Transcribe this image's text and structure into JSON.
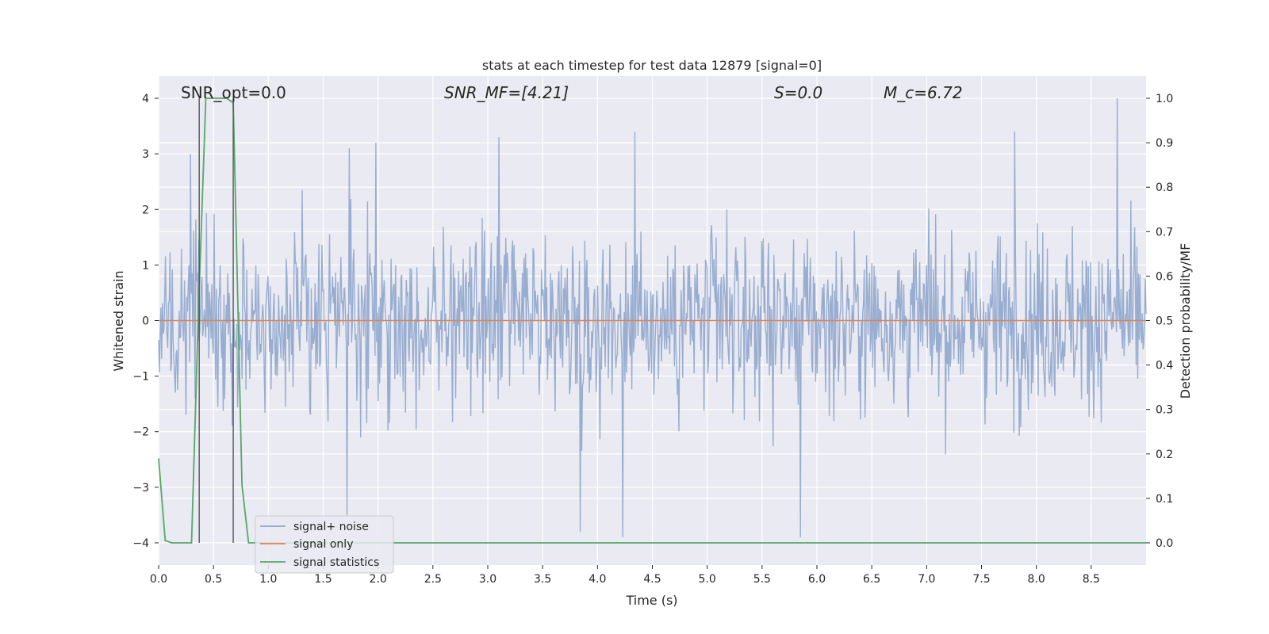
{
  "chart_data": {
    "type": "line",
    "title": "stats at each timestep for test data 12879 [signal=0]",
    "xlabel": "Time (s)",
    "ylabel": "Whitened strain",
    "y2label": "Detection probability/MF",
    "xlim": [
      0,
      9.0
    ],
    "ylim": [
      -4.4,
      4.4
    ],
    "y2lim": [
      -0.05,
      1.05
    ],
    "x_ticks": [
      "0.0",
      "0.5",
      "1.0",
      "1.5",
      "2.0",
      "2.5",
      "3.0",
      "3.5",
      "4.0",
      "4.5",
      "5.0",
      "5.5",
      "6.0",
      "6.5",
      "7.0",
      "7.5",
      "8.0",
      "8.5"
    ],
    "y_ticks": [
      "−4",
      "−3",
      "−2",
      "−1",
      "0",
      "1",
      "2",
      "3",
      "4"
    ],
    "y2_ticks": [
      "0.0",
      "0.1",
      "0.2",
      "0.3",
      "0.4",
      "0.5",
      "0.6",
      "0.7",
      "0.8",
      "0.9",
      "1.0"
    ],
    "grid": true,
    "legend_position": "lower-left",
    "annotations": {
      "snr_opt": "SNR_opt=0.0",
      "snr_mf": "SNR_MF=[4.21]",
      "s": "S=0.0",
      "mc": "M_c=6.72"
    },
    "series": [
      {
        "name": "signal+ noise",
        "color": "#8fa6cc",
        "axis": "left",
        "description": "dense whitened noise trace, roughly within ±2.5 with peaks to ±4",
        "peaks": [
          {
            "x": 0.29,
            "y": 3.0
          },
          {
            "x": 1.74,
            "y": 3.1
          },
          {
            "x": 1.98,
            "y": 3.2
          },
          {
            "x": 3.1,
            "y": 3.3
          },
          {
            "x": 4.34,
            "y": 3.4
          },
          {
            "x": 7.8,
            "y": 3.4
          },
          {
            "x": 8.74,
            "y": 4.0
          },
          {
            "x": 1.72,
            "y": -3.5
          },
          {
            "x": 4.23,
            "y": -3.9
          },
          {
            "x": 5.85,
            "y": -3.9
          },
          {
            "x": 3.84,
            "y": -3.8
          }
        ]
      },
      {
        "name": "signal only",
        "color": "#dd8452",
        "axis": "left",
        "x": [
          0,
          9.0
        ],
        "y": [
          0,
          0
        ]
      },
      {
        "name": "signal statistics",
        "color": "#55a868",
        "axis": "right",
        "x": [
          0.0,
          0.06,
          0.12,
          0.3,
          0.36,
          0.43,
          0.62,
          0.68,
          0.76,
          0.82,
          9.0
        ],
        "y": [
          0.19,
          0.005,
          0.0,
          0.0,
          0.5,
          1.0,
          1.0,
          0.99,
          0.13,
          0.0,
          0.0
        ]
      }
    ],
    "vertical_markers": [
      {
        "x": 0.37,
        "y_top": 1.0,
        "y_bottom": 0.0,
        "color": "#555555"
      },
      {
        "x": 0.68,
        "y_top": 1.0,
        "y_bottom": 0.0,
        "color": "#555555"
      }
    ]
  }
}
